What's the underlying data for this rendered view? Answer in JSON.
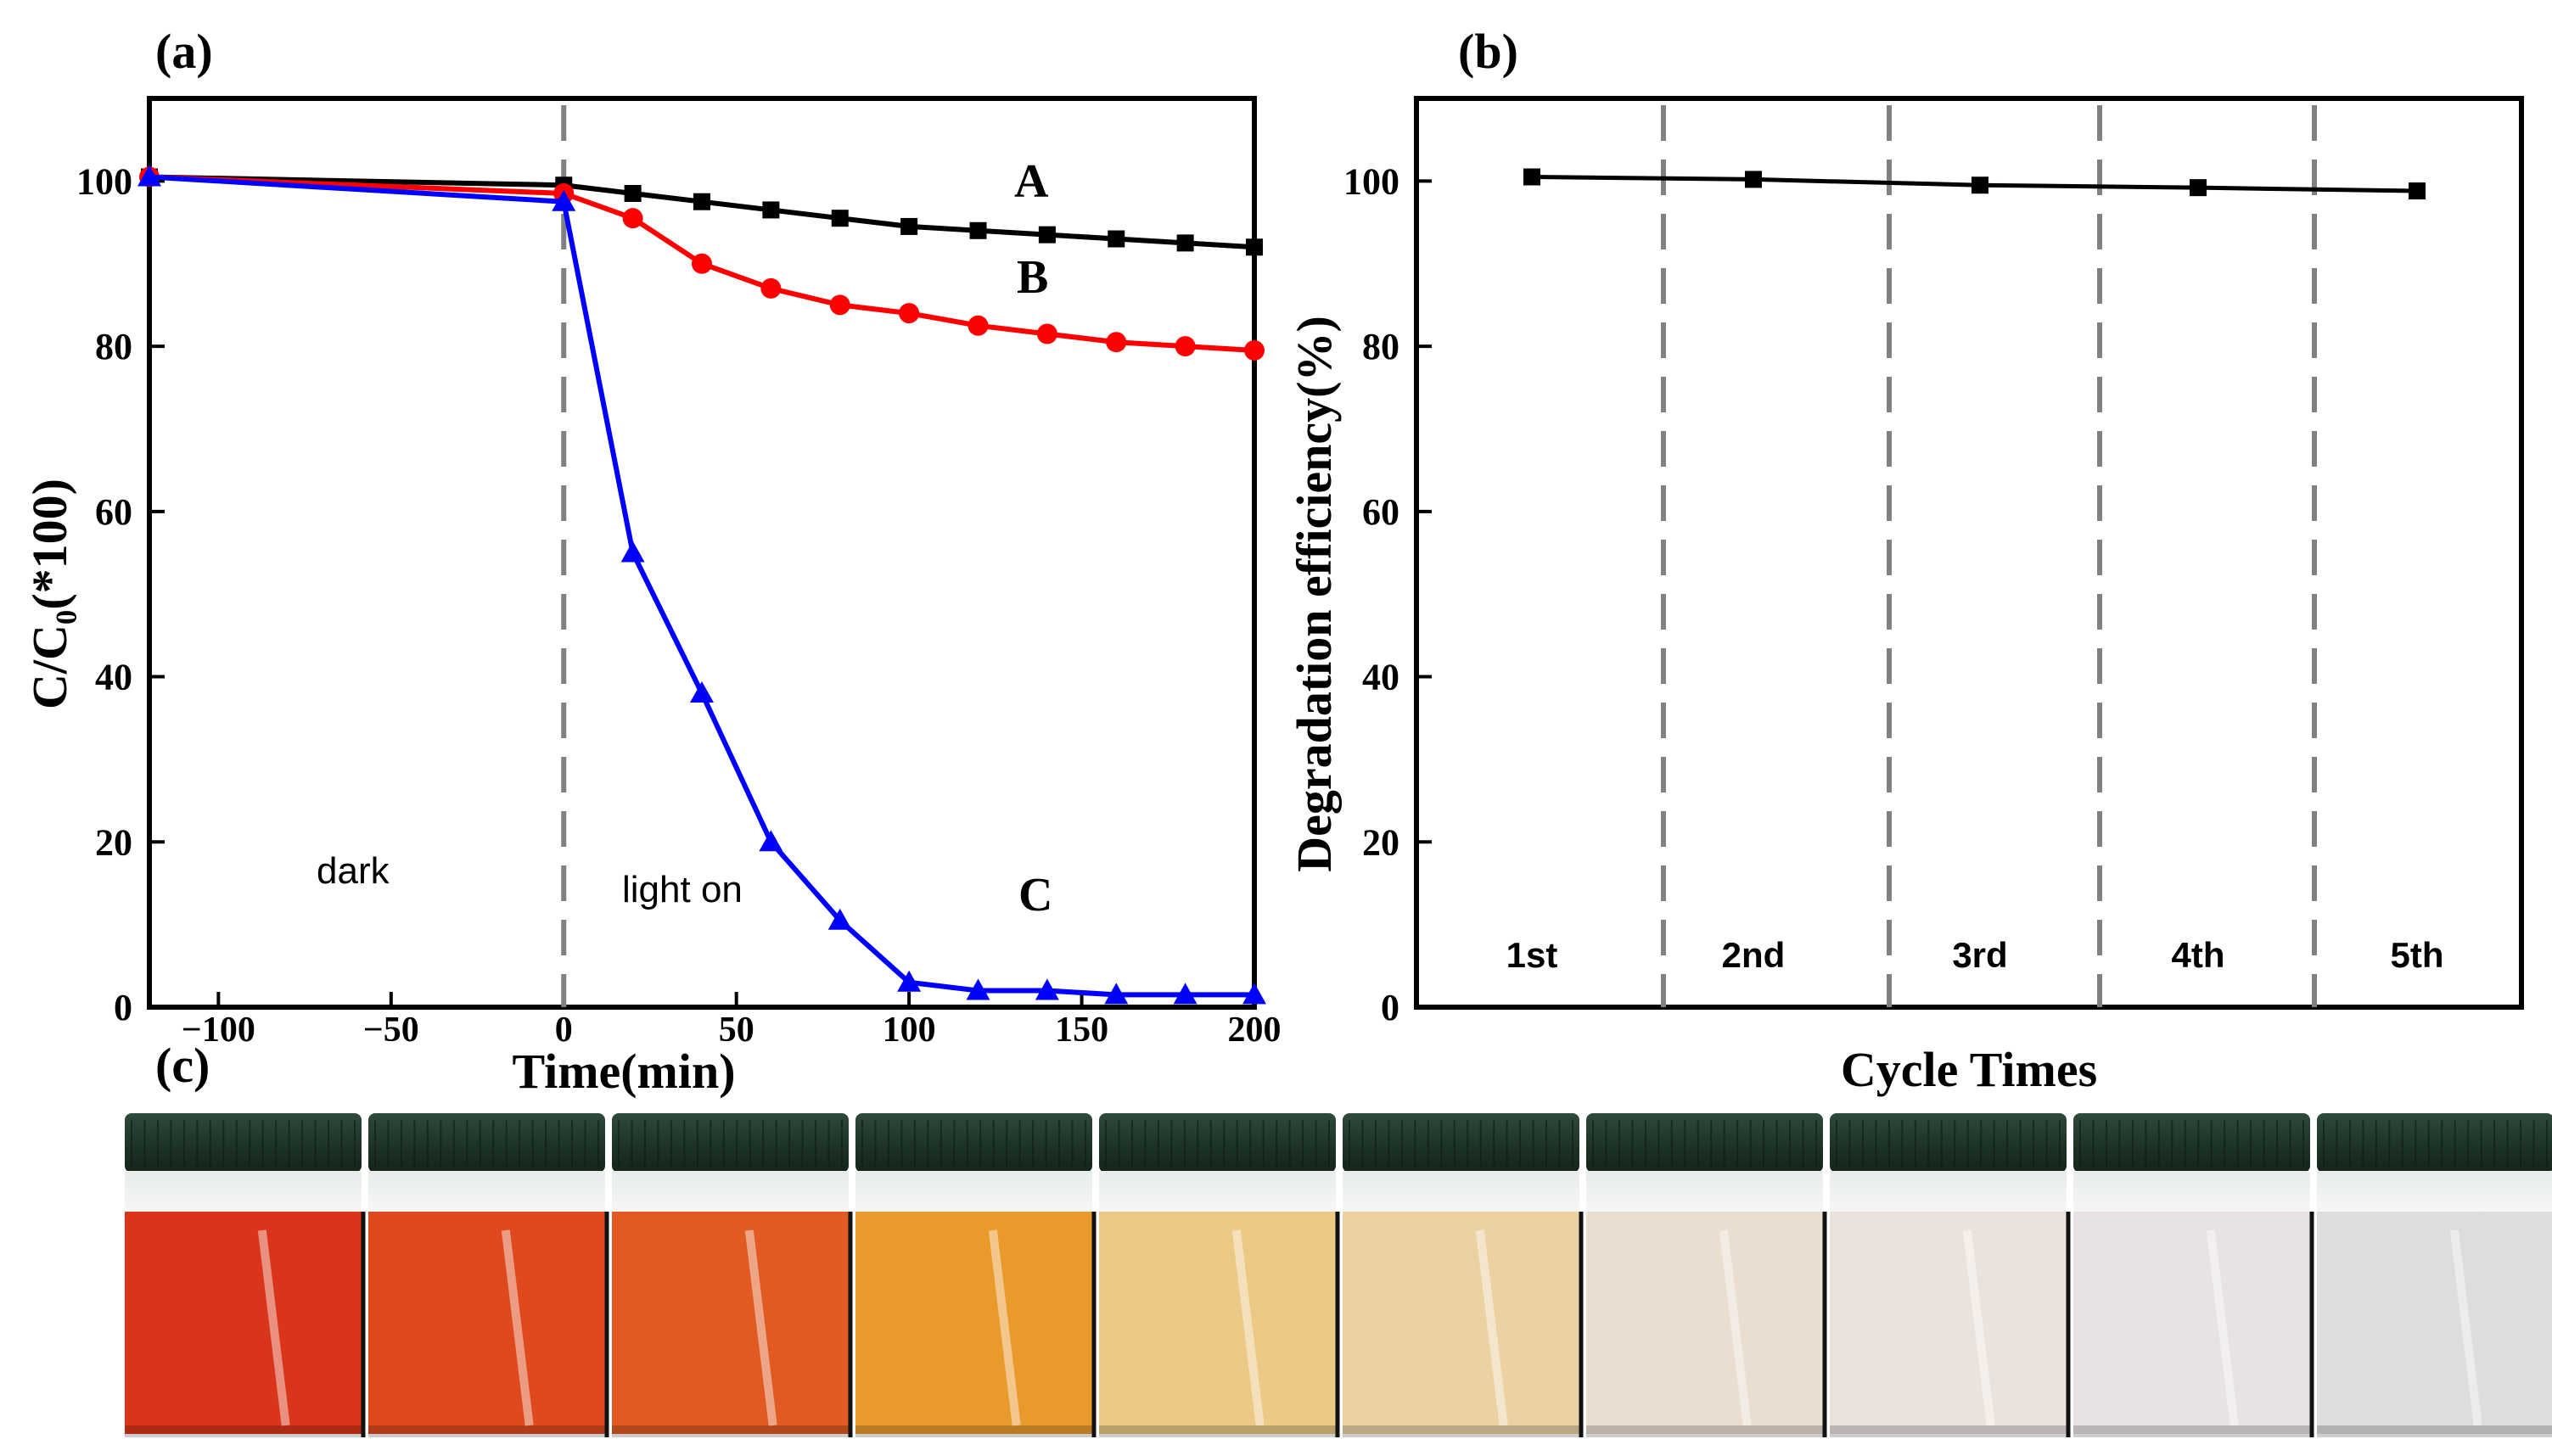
{
  "panels": {
    "a": {
      "label": "(a)",
      "annotations": {
        "dark": "dark",
        "light": "light on"
      }
    },
    "b": {
      "label": "(b)"
    },
    "c": {
      "label": "(c)",
      "bottle_count": 10
    }
  },
  "chart_data": [
    {
      "type": "line",
      "panel": "a",
      "title": "",
      "xlabel": "Time(min)",
      "ylabel": "C/C₀(*100)",
      "xlim": [
        -120,
        200
      ],
      "ylim": [
        0,
        110
      ],
      "x_ticks": [
        -100,
        -50,
        0,
        50,
        100,
        150,
        200
      ],
      "x_tick_labels": [
        "−100",
        "−50",
        "0",
        "50",
        "100",
        "150",
        "200"
      ],
      "y_ticks": [
        0,
        20,
        40,
        60,
        80,
        100
      ],
      "y_tick_labels": [
        "0",
        "20",
        "40",
        "60",
        "80",
        "100"
      ],
      "divider_x": 0,
      "series": [
        {
          "name": "A",
          "color": "#000000",
          "marker": "square",
          "x": [
            -120,
            0,
            20,
            40,
            60,
            80,
            100,
            120,
            140,
            160,
            180,
            200
          ],
          "y": [
            100.5,
            99.5,
            98.5,
            97.5,
            96.5,
            95.5,
            94.5,
            94,
            93.5,
            93,
            92.5,
            92
          ]
        },
        {
          "name": "B",
          "color": "#ff0000",
          "marker": "circle",
          "x": [
            -120,
            0,
            20,
            40,
            60,
            80,
            100,
            120,
            140,
            160,
            180,
            200
          ],
          "y": [
            100.5,
            98.5,
            95.5,
            90,
            87,
            85,
            84,
            82.5,
            81.5,
            80.5,
            80,
            79.5
          ]
        },
        {
          "name": "C",
          "color": "#0000ff",
          "marker": "triangle",
          "x": [
            -120,
            0,
            20,
            40,
            60,
            80,
            100,
            120,
            140,
            160,
            180,
            200
          ],
          "y": [
            100.5,
            97.5,
            55,
            38,
            20,
            10.5,
            3,
            2,
            2,
            1.5,
            1.5,
            1.5
          ]
        }
      ]
    },
    {
      "type": "line",
      "panel": "b",
      "title": "",
      "xlabel": "Cycle Times",
      "ylabel": "Degradation efficiency(%)",
      "ylim": [
        0,
        110
      ],
      "y_ticks": [
        0,
        20,
        40,
        60,
        80,
        100
      ],
      "y_tick_labels": [
        "0",
        "20",
        "40",
        "60",
        "80",
        "100"
      ],
      "categories": [
        "1st",
        "2nd",
        "3rd",
        "4th",
        "5th"
      ],
      "series": [
        {
          "name": "Degradation efficiency",
          "color": "#000000",
          "marker": "square",
          "values": [
            100.5,
            100.2,
            99.5,
            99.2,
            98.8
          ]
        }
      ]
    }
  ]
}
